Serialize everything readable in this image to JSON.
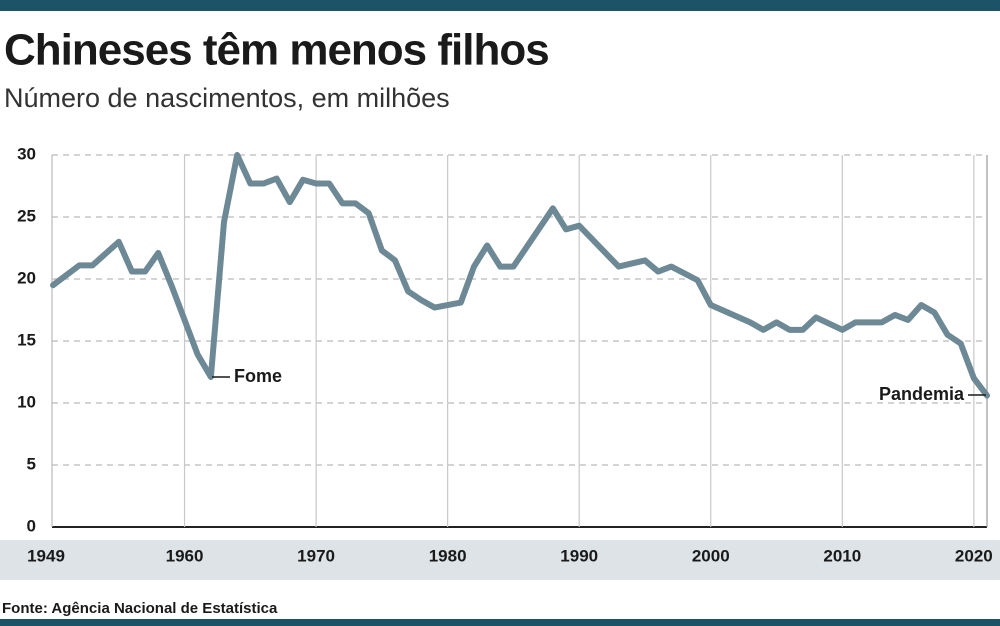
{
  "chart_data": {
    "type": "line",
    "title": "Chineses têm menos filhos",
    "subtitle": "Número de nascimentos, em milhões",
    "source": "Fonte: Agência Nacional de Estatística",
    "annotations": [
      "Fome",
      "Pandemia"
    ],
    "x": [
      1950,
      1952,
      1953,
      1955,
      1956,
      1957,
      1958,
      1959,
      1960,
      1961,
      1962,
      1963,
      1964,
      1965,
      1966,
      1967,
      1968,
      1969,
      1970,
      1971,
      1972,
      1973,
      1974,
      1975,
      1976,
      1977,
      1978,
      1979,
      1981,
      1982,
      1983,
      1984,
      1985,
      1988,
      1989,
      1990,
      1993,
      1995,
      1996,
      1997,
      1999,
      2000,
      2003,
      2004,
      2005,
      2006,
      2007,
      2008,
      2010,
      2011,
      2013,
      2014,
      2015,
      2016,
      2017,
      2018,
      2019,
      2020,
      2021
    ],
    "series": [
      {
        "name": "Nascimentos",
        "color": "#6d8995",
        "values": [
          19.5,
          21.1,
          21.1,
          23.0,
          20.6,
          20.6,
          22.1,
          19.5,
          16.7,
          13.9,
          12.1,
          24.6,
          30.0,
          27.7,
          27.7,
          28.1,
          26.2,
          28.0,
          27.7,
          27.7,
          26.1,
          26.1,
          25.3,
          22.3,
          21.5,
          19.0,
          18.3,
          17.7,
          18.1,
          21.0,
          22.7,
          21.0,
          21.0,
          25.7,
          24.0,
          24.3,
          21.0,
          21.5,
          20.6,
          21.0,
          19.9,
          17.9,
          16.5,
          15.9,
          16.5,
          15.9,
          15.9,
          16.9,
          15.9,
          16.5,
          16.5,
          17.1,
          16.7,
          17.9,
          17.3,
          15.5,
          14.8,
          12.0,
          10.6
        ]
      }
    ],
    "xlim": [
      1950,
      2021
    ],
    "xticks": [
      1949,
      1960,
      1970,
      1980,
      1990,
      2000,
      2010,
      2020
    ],
    "ylim": [
      0,
      30
    ],
    "yticks": [
      0,
      5,
      10,
      15,
      20,
      25,
      30
    ],
    "grid": true
  }
}
